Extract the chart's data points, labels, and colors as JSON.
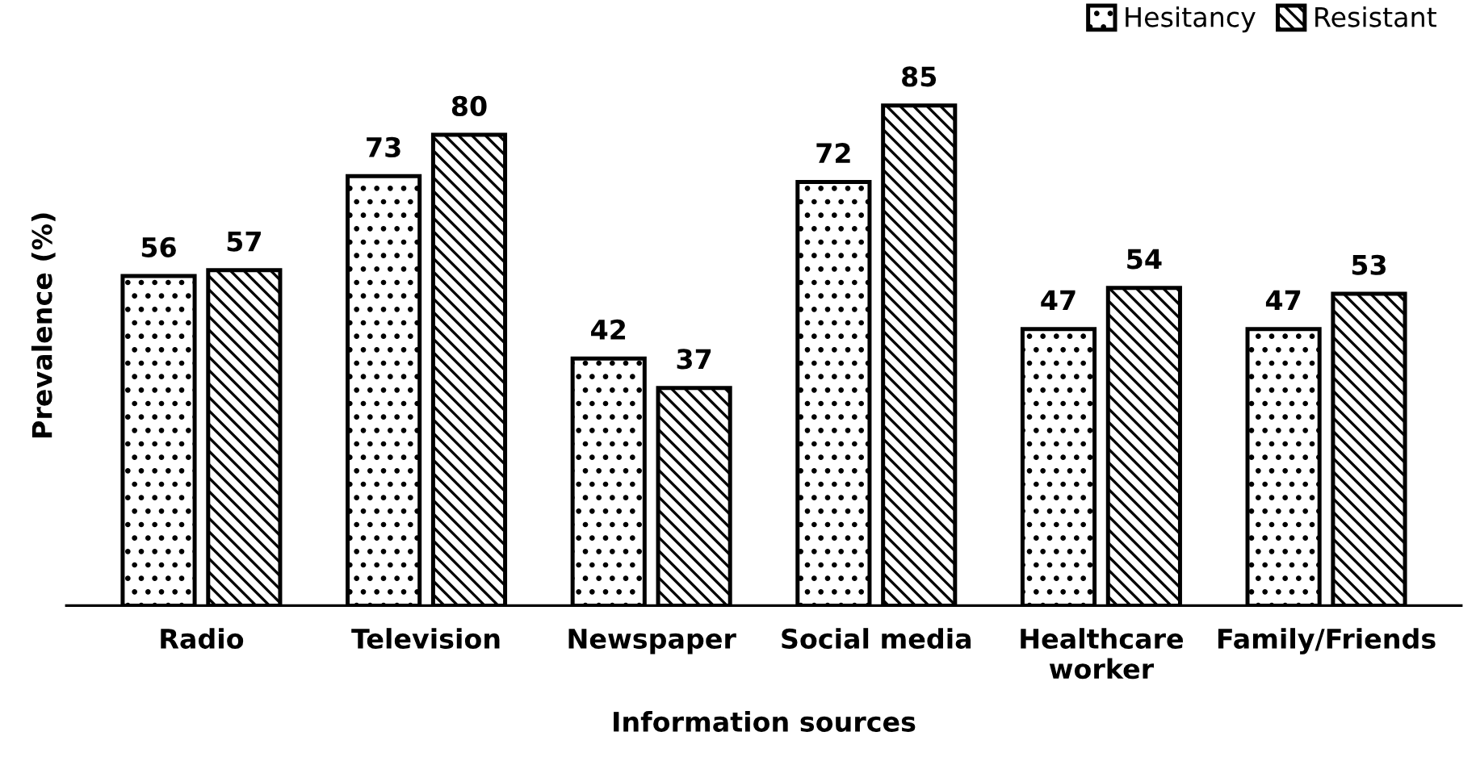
{
  "chart_data": {
    "type": "bar",
    "xlabel": "Information sources",
    "ylabel": "Prevalence (%)",
    "categories": [
      "Radio",
      "Television",
      "Newspaper",
      "Social media",
      "Healthcare\nworker",
      "Family/Friends"
    ],
    "series": [
      {
        "name": "Hesitancy",
        "color": "#000000",
        "values": [
          56,
          73,
          42,
          72,
          47,
          47
        ]
      },
      {
        "name": "Resistant",
        "color": "#000000",
        "values": [
          57,
          80,
          37,
          85,
          54,
          53
        ]
      }
    ],
    "data_labels": true,
    "legend": "top right",
    "grid": false
  }
}
